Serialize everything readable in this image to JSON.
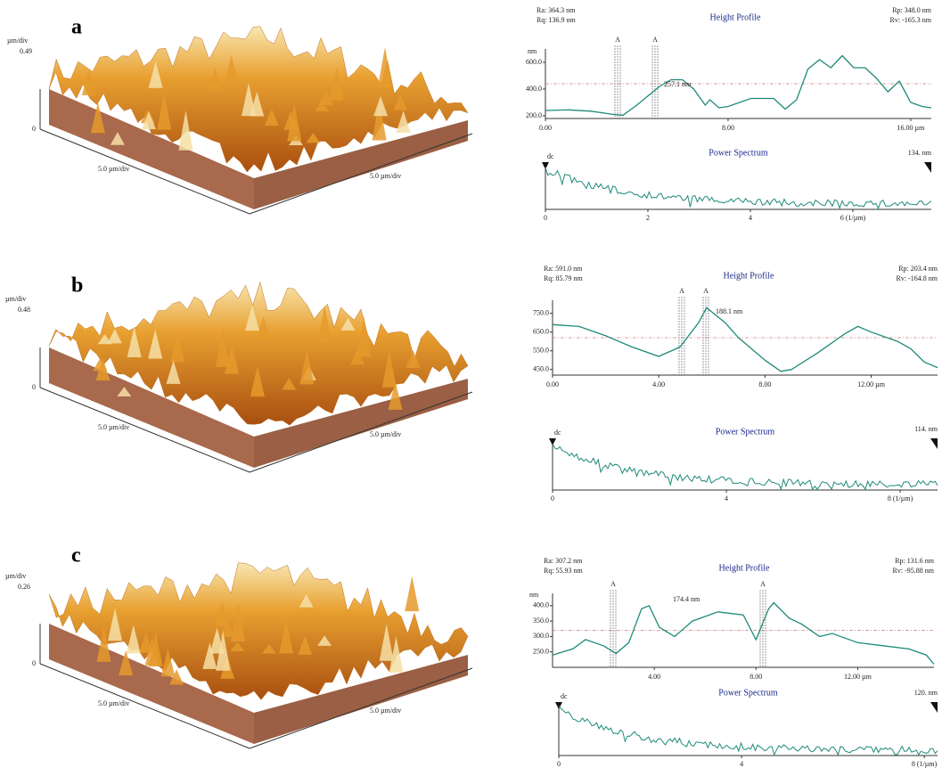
{
  "panels": [
    {
      "label": "a",
      "afm": {
        "z_unit": "µm/div",
        "z_max": "0.49",
        "z_min": "0",
        "x_scale": "5.0 µm/div",
        "y_scale": "5.0 µm/div"
      },
      "height_profile": {
        "title": "Height Profile",
        "ra": "Ra: 364.3 nm",
        "rq": "Rq: 136.9 nm",
        "rp": "Rp: 348.0 nm",
        "rv": "Rv: -165.3 nm",
        "y_unit": "nm",
        "annotation": "257.1 nm",
        "cursor_label": "A",
        "xlim": [
          0,
          16.9
        ],
        "ylim": [
          180,
          700
        ],
        "xticks": [
          {
            "value": 0,
            "label": "0.00"
          },
          {
            "value": 8,
            "label": "8.00"
          },
          {
            "value": 16,
            "label": "16.00 µm"
          }
        ],
        "yticks": [
          {
            "value": 200,
            "label": "200.0"
          },
          {
            "value": 400,
            "label": "400.0"
          },
          {
            "value": 600,
            "label": "600.0"
          }
        ],
        "x": [
          0,
          1,
          2,
          3,
          3.4,
          4,
          5,
          5.5,
          6,
          6.5,
          7,
          7.2,
          7.6,
          8,
          9,
          10,
          10.5,
          11,
          11.5,
          12,
          12.5,
          13,
          13.5,
          14,
          14.5,
          15,
          15.5,
          16,
          16.5,
          16.9
        ],
        "values": [
          240,
          245,
          235,
          210,
          205,
          280,
          420,
          470,
          470,
          400,
          280,
          320,
          260,
          270,
          330,
          330,
          250,
          320,
          550,
          620,
          560,
          650,
          560,
          560,
          480,
          380,
          460,
          300,
          270,
          260
        ]
      },
      "power_spectrum": {
        "title": "Power Spectrum",
        "dc": "dc",
        "end_label": "134. nm",
        "xlim": [
          0,
          7.53
        ],
        "xticks": [
          0,
          2,
          4,
          {
            "value": 6,
            "label": "6 (1/µm)"
          }
        ]
      }
    },
    {
      "label": "b",
      "afm": {
        "z_unit": "µm/div",
        "z_max": "0.48",
        "z_min": "0",
        "x_scale": "5.0 µm/div",
        "y_scale": "5.0 µm/div"
      },
      "height_profile": {
        "title": "Height Profile",
        "ra": "Ra: 591.0 nm",
        "rq": "Rq: 85.79 nm",
        "rp": "Rp: 203.4 nm",
        "rv": "Rv: -164.8 nm",
        "annotation": "188.1 nm",
        "cursor_label": "A",
        "xlim": [
          0,
          14.5
        ],
        "ylim": [
          420,
          820
        ],
        "xticks": [
          {
            "value": 0,
            "label": "0.00"
          },
          {
            "value": 4,
            "label": "4.00"
          },
          {
            "value": 8,
            "label": "8.00"
          },
          {
            "value": 12,
            "label": "12.00 µm"
          }
        ],
        "yticks": [
          {
            "value": 450,
            "label": "450.0"
          },
          {
            "value": 550,
            "label": "550.0"
          },
          {
            "value": 650,
            "label": "650.0"
          },
          {
            "value": 750,
            "label": "750.0"
          }
        ],
        "x": [
          0,
          1,
          2,
          3,
          4,
          4.8,
          5.5,
          5.8,
          6.5,
          7,
          8,
          8.6,
          9,
          10,
          11,
          11.5,
          12,
          13,
          13.5,
          14,
          14.5
        ],
        "values": [
          690,
          680,
          630,
          570,
          520,
          570,
          700,
          780,
          700,
          620,
          500,
          440,
          450,
          540,
          640,
          680,
          650,
          600,
          560,
          490,
          460
        ]
      },
      "power_spectrum": {
        "title": "Power Spectrum",
        "dc": "dc",
        "end_label": "114. nm",
        "xlim": [
          0,
          8.86
        ],
        "xticks": [
          0,
          4,
          {
            "value": 8,
            "label": "8 (1/µm)"
          }
        ]
      }
    },
    {
      "label": "c",
      "afm": {
        "z_unit": "µm/div",
        "z_max": "0.26",
        "z_min": "0",
        "x_scale": "5.0 µm/div",
        "y_scale": "5.0 µm/div"
      },
      "height_profile": {
        "title": "Height Profile",
        "ra": "Ra: 307.2 nm",
        "rq": "Rq: 55.93 nm",
        "rp": "Rp: 131.6 nm",
        "rv": "Rv: -95.88 nm",
        "y_unit": "nm",
        "annotation": "174.4 nm",
        "cursor_label": "A",
        "xlim": [
          0,
          15
        ],
        "ylim": [
          200,
          440
        ],
        "xticks": [
          {
            "value": 4,
            "label": "4.00"
          },
          {
            "value": 8,
            "label": "8.00"
          },
          {
            "value": 12,
            "label": "12.00 µm"
          }
        ],
        "yticks": [
          {
            "value": 250,
            "label": "250.0"
          },
          {
            "value": 300,
            "label": "300.0"
          },
          {
            "value": 350,
            "label": "350.0"
          },
          {
            "value": 400,
            "label": "400.0"
          }
        ],
        "x": [
          0,
          0.8,
          1.3,
          2,
          2.5,
          3,
          3.5,
          3.8,
          4.2,
          4.8,
          5.5,
          6.5,
          7.5,
          8,
          8.5,
          8.7,
          9.3,
          9.8,
          10.5,
          11,
          12,
          13,
          14,
          14.7,
          15
        ],
        "values": [
          240,
          260,
          290,
          270,
          245,
          280,
          390,
          400,
          330,
          300,
          350,
          380,
          370,
          290,
          390,
          410,
          360,
          340,
          300,
          310,
          280,
          270,
          260,
          240,
          210
        ]
      },
      "power_spectrum": {
        "title": "Power Spectrum",
        "dc": "dc",
        "end_label": "120. nm",
        "xlim": [
          0,
          8.29
        ],
        "xticks": [
          0,
          4,
          {
            "value": 8,
            "label": "8 (1/µm)"
          }
        ]
      }
    }
  ]
}
